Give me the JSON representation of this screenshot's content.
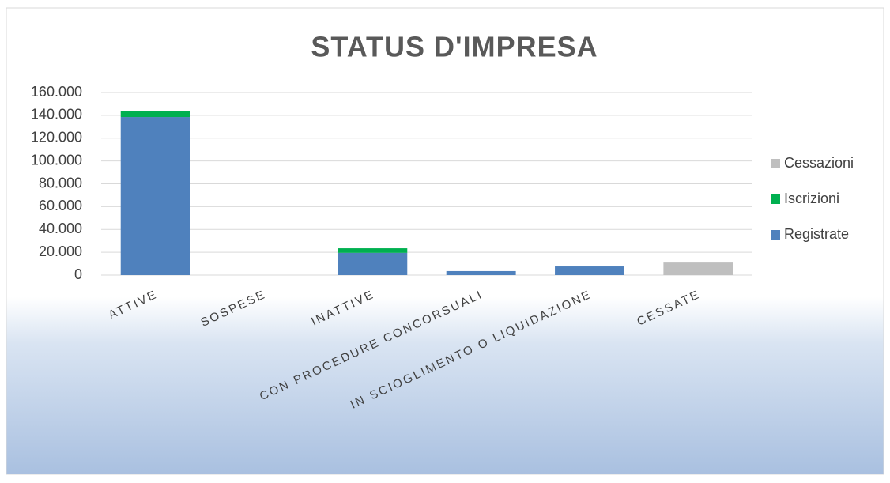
{
  "chart_data": {
    "type": "stacked_bar",
    "title": "STATUS D'IMPRESA",
    "categories": [
      "ATTIVE",
      "SOSPESE",
      "INATTIVE",
      "CON PROCEDURE CONCORSUALI",
      "IN SCIOGLIMENTO O LIQUIDAZIONE",
      "CESSATE"
    ],
    "series": [
      {
        "name": "Registrate",
        "color": "#4f81bd",
        "values": [
          138500,
          null,
          19500,
          3500,
          7600,
          null
        ]
      },
      {
        "name": "Iscrizioni",
        "color": "#00b050",
        "values": [
          5000,
          null,
          4000,
          null,
          null,
          null
        ]
      },
      {
        "name": "Cessazioni",
        "color": "#bfbfbf",
        "values": [
          null,
          null,
          null,
          null,
          null,
          11000
        ]
      }
    ],
    "ylim": [
      0,
      160000
    ],
    "yticks": [
      0,
      {
        "value": 20000,
        "label": "20.000"
      },
      {
        "value": 40000,
        "label": "40.000"
      },
      {
        "value": 60000,
        "label": "60.000"
      },
      {
        "value": 80000,
        "label": "80.000"
      },
      {
        "value": 100000,
        "label": "100.000"
      },
      {
        "value": 120000,
        "label": "120.000"
      },
      {
        "value": 140000,
        "label": "140.000"
      },
      {
        "value": 160000,
        "label": "160.000"
      }
    ],
    "grid": true,
    "legend": "right"
  }
}
